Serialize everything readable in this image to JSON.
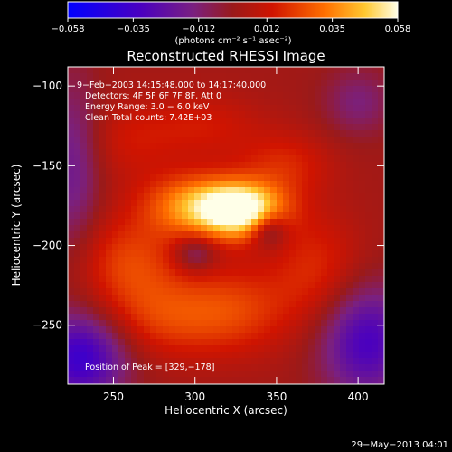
{
  "chart_data": {
    "type": "heatmap",
    "title": "Reconstructed RHESSI Image",
    "xlabel": "Heliocentric X (arcsec)",
    "ylabel": "Heliocentric Y (arcsec)",
    "xlim": [
      222,
      416
    ],
    "ylim": [
      -287,
      -88
    ],
    "x_ticks": [
      250,
      300,
      350,
      400
    ],
    "y_ticks": [
      -100,
      -150,
      -200,
      -250
    ],
    "colorbar": {
      "min": -0.058,
      "max": 0.058,
      "ticks": [
        -0.058,
        -0.035,
        -0.012,
        0.012,
        0.035,
        0.058
      ],
      "tick_labels": [
        "−0.058",
        "−0.035",
        "−0.012",
        "0.012",
        "0.035",
        "0.058"
      ],
      "units_label": "(photons cm⁻² s⁻¹ asec⁻²)"
    },
    "sources": [
      {
        "x": 329,
        "y": -178,
        "sx": 18,
        "sy": 12,
        "amp": 0.058
      },
      {
        "x": 300,
        "y": -175,
        "sx": 22,
        "sy": 14,
        "amp": 0.035
      },
      {
        "x": 260,
        "y": -210,
        "sx": 22,
        "sy": 20,
        "amp": 0.02
      },
      {
        "x": 280,
        "y": -245,
        "sx": 28,
        "sy": 18,
        "amp": 0.018
      },
      {
        "x": 325,
        "y": -240,
        "sx": 25,
        "sy": 20,
        "amp": 0.018
      },
      {
        "x": 375,
        "y": -215,
        "sx": 20,
        "sy": 25,
        "amp": 0.016
      },
      {
        "x": 355,
        "y": -150,
        "sx": 20,
        "sy": 15,
        "amp": 0.015
      },
      {
        "x": 305,
        "y": -125,
        "sx": 25,
        "sy": 15,
        "amp": 0.012
      },
      {
        "x": 260,
        "y": -135,
        "sx": 20,
        "sy": 18,
        "amp": 0.01
      },
      {
        "x": 345,
        "y": -190,
        "sx": 8,
        "sy": 8,
        "amp": -0.025
      },
      {
        "x": 300,
        "y": -205,
        "sx": 9,
        "sy": 8,
        "amp": -0.02
      },
      {
        "x": 230,
        "y": -270,
        "sx": 20,
        "sy": 20,
        "amp": -0.04
      },
      {
        "x": 405,
        "y": -260,
        "sx": 20,
        "sy": 25,
        "amp": -0.035
      },
      {
        "x": 400,
        "y": -110,
        "sx": 15,
        "sy": 15,
        "amp": -0.015
      },
      {
        "x": 225,
        "y": -150,
        "sx": 12,
        "sy": 40,
        "amp": -0.02
      }
    ],
    "annotations": [
      " 9−Feb−2003 14:15:48.000 to 14:17:40.000",
      "Detectors: 4F 5F 6F 7F 8F, Att 0",
      "Energy Range: 3.0 − 6.0 keV",
      "Clean     Total counts: 7.42E+03"
    ],
    "peak_label": "Position of Peak = [329,−178]",
    "peak": [
      329,
      -178
    ]
  },
  "footer_timestamp": "29−May−2013 04:01"
}
